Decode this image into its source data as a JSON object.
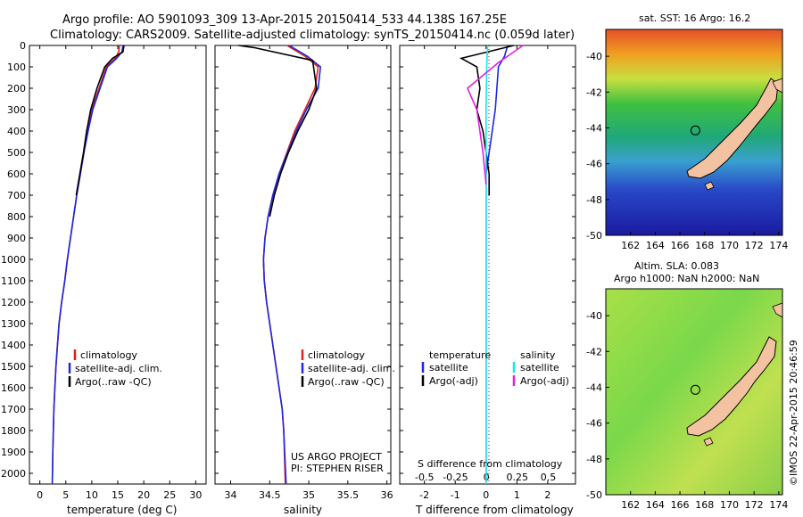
{
  "header": {
    "line1": "Argo profile: AO 5901093_309 13-Apr-2015 20150414_533 44.138S 167.25E",
    "line2": "Climatology: CARS2009. Satellite-adjusted climatology: synTS_20150414.nc (0.059d later)"
  },
  "colors": {
    "clim": "#e0201b",
    "sat": "#1b28e0",
    "argo": "#000000",
    "cyan": "#12e8f0",
    "magenta": "#e020e0",
    "land": "#f3c3a1"
  },
  "depth_ticks": [
    "0",
    "100",
    "200",
    "300",
    "400",
    "500",
    "600",
    "700",
    "800",
    "900",
    "1000",
    "1100",
    "1200",
    "1300",
    "1400",
    "1500",
    "1600",
    "1700",
    "1800",
    "1900",
    "2000"
  ],
  "panels": {
    "temperature": {
      "xlabel": "temperature (deg C)",
      "xticks": [
        "0",
        "5",
        "10",
        "15",
        "20",
        "25",
        "30"
      ],
      "xlim": [
        -2,
        32
      ],
      "legend": [
        "climatology",
        "satellite-adj. clim.",
        "Argo(..raw -QC)"
      ]
    },
    "salinity": {
      "xlabel": "salinity",
      "xticks": [
        "34",
        "34.5",
        "35",
        "35.5",
        "36"
      ],
      "xlim": [
        33.8,
        36.05
      ],
      "legend": [
        "climatology",
        "satellite-adj. clim.",
        "Argo(..raw -QC)"
      ],
      "credit1": "US ARGO PROJECT",
      "credit2": "PI: STEPHEN RISER"
    },
    "difference": {
      "xlabel": "T difference from climatology",
      "xticks": [
        "-2",
        "-1",
        "0",
        "1",
        "2"
      ],
      "xlim": [
        -2.8,
        2.9
      ],
      "s_xlabel": "S difference from climatology",
      "s_xticks": [
        "-0.5",
        "-0.25",
        "0",
        "0.25",
        "0.5"
      ],
      "legend_temp_title": "temperature",
      "legend_sal_title": "salinity",
      "legend_temp": [
        "satellite",
        "Argo(-adj)"
      ],
      "legend_sal": [
        "satellite",
        "Argo(-adj)"
      ]
    }
  },
  "maps": {
    "top_title": "sat. SST: 16 Argo: 16.2",
    "bottom_title1": "Altim. SLA: 0.083",
    "bottom_title2": "Argo h1000: NaN h2000: NaN",
    "yticks": [
      "-40",
      "-42",
      "-44",
      "-46",
      "-48",
      "-50"
    ],
    "xticks": [
      "162",
      "164",
      "166",
      "168",
      "170",
      "172",
      "174"
    ],
    "lon_range": [
      160,
      174.3
    ],
    "lat_range": [
      -50,
      -38.5
    ],
    "argo_lon": 167.25,
    "argo_lat": -44.138
  },
  "stamp": "©IMOS 22-Apr-2015 20:46:59",
  "chart_data": [
    {
      "type": "line",
      "title": "Argo profile: AO 5901093_309 13-Apr-2015 20150414_533 44.138S 167.25E",
      "xlabel": "temperature (deg C)",
      "ylabel": "",
      "xlim": [
        -2,
        32
      ],
      "ylim": [
        2050,
        0
      ],
      "series": [
        {
          "name": "climatology",
          "x": [
            15.3,
            15.2,
            14.5,
            12.8,
            11.4,
            10.0,
            9.2,
            8.5,
            7.8,
            7.1,
            6.5,
            5.9,
            5.3,
            4.8,
            4.2,
            3.7,
            3.4,
            3.1,
            2.9,
            2.7,
            2.6,
            2.5,
            2.4
          ],
          "y": [
            0,
            30,
            60,
            100,
            200,
            300,
            400,
            500,
            600,
            700,
            800,
            900,
            1000,
            1100,
            1200,
            1300,
            1400,
            1500,
            1600,
            1700,
            1800,
            1900,
            2050
          ]
        },
        {
          "name": "satellite-adj. clim.",
          "x": [
            16.0,
            15.8,
            14.8,
            13.0,
            11.6,
            10.2,
            9.3,
            8.5,
            7.8,
            7.1,
            6.5,
            5.9,
            5.3,
            4.8,
            4.2,
            3.7,
            3.4,
            3.1,
            2.9,
            2.7,
            2.6,
            2.5,
            2.4
          ],
          "y": [
            0,
            30,
            60,
            100,
            200,
            300,
            400,
            500,
            600,
            700,
            800,
            900,
            1000,
            1100,
            1200,
            1300,
            1400,
            1500,
            1600,
            1700,
            1800,
            1900,
            2050
          ]
        },
        {
          "name": "Argo(..raw -QC)",
          "x": [
            16.2,
            16.0,
            14.0,
            12.5,
            11.0,
            9.8,
            9.0,
            8.4,
            7.7,
            7.0
          ],
          "y": [
            0,
            30,
            60,
            100,
            200,
            300,
            400,
            500,
            600,
            700
          ]
        }
      ]
    },
    {
      "type": "line",
      "xlabel": "salinity",
      "xlim": [
        33.8,
        36.05
      ],
      "ylim": [
        2050,
        0
      ],
      "series": [
        {
          "name": "climatology",
          "x": [
            34.72,
            34.95,
            35.12,
            35.08,
            34.95,
            34.82,
            34.72,
            34.62,
            34.54,
            34.48,
            34.44,
            34.42,
            34.43,
            34.46,
            34.5,
            34.54,
            34.58,
            34.62,
            34.66,
            34.68,
            34.7
          ],
          "y": [
            0,
            50,
            100,
            200,
            300,
            400,
            500,
            600,
            700,
            800,
            900,
            1000,
            1100,
            1200,
            1300,
            1400,
            1500,
            1600,
            1700,
            1800,
            2050
          ]
        },
        {
          "name": "satellite-adj. clim.",
          "x": [
            34.75,
            34.98,
            35.15,
            35.12,
            34.97,
            34.84,
            34.73,
            34.62,
            34.54,
            34.48,
            34.44,
            34.42,
            34.43,
            34.46,
            34.5,
            34.54,
            34.58,
            34.62,
            34.66,
            34.68,
            34.71
          ],
          "y": [
            0,
            50,
            100,
            200,
            300,
            400,
            500,
            600,
            700,
            800,
            900,
            1000,
            1100,
            1200,
            1300,
            1400,
            1500,
            1600,
            1700,
            1800,
            2050
          ]
        },
        {
          "name": "Argo(..raw -QC)",
          "x": [
            34.1,
            34.3,
            35.05,
            35.1,
            35.0,
            34.86,
            34.74,
            34.64,
            34.56,
            34.5
          ],
          "y": [
            0,
            10,
            70,
            200,
            300,
            400,
            500,
            600,
            700,
            800
          ]
        }
      ]
    },
    {
      "type": "line",
      "xlabel": "T difference from climatology",
      "xlim": [
        -2.8,
        2.9
      ],
      "ylim": [
        2050,
        0
      ],
      "series": [
        {
          "name": "satellite (temperature)",
          "x": [
            0.7,
            0.6,
            0.4,
            0.35,
            0.3,
            0.2,
            0.1,
            0.0,
            0.0,
            0.0,
            0.0,
            0.0
          ],
          "y": [
            0,
            50,
            100,
            200,
            300,
            400,
            500,
            600,
            700,
            800,
            1000,
            2050
          ]
        },
        {
          "name": "Argo(-adj) (temperature)",
          "x": [
            0.9,
            -0.8,
            -0.3,
            -0.2,
            -0.3,
            -0.1,
            0.0,
            0.1,
            0.1
          ],
          "y": [
            0,
            60,
            100,
            200,
            300,
            400,
            500,
            600,
            700
          ]
        },
        {
          "name": "satellite (salinity)",
          "x": [
            0.05,
            0.02,
            0.0,
            0.0,
            0.0,
            0.0,
            0.0
          ],
          "y": [
            0,
            100,
            300,
            600,
            1000,
            1500,
            2050
          ]
        },
        {
          "name": "Argo(-adj) (salinity)",
          "x": [
            1.2,
            0.8,
            0.4,
            -0.6,
            -0.3,
            -0.1,
            0.0
          ],
          "y": [
            0,
            40,
            80,
            200,
            300,
            500,
            650
          ]
        }
      ]
    }
  ]
}
